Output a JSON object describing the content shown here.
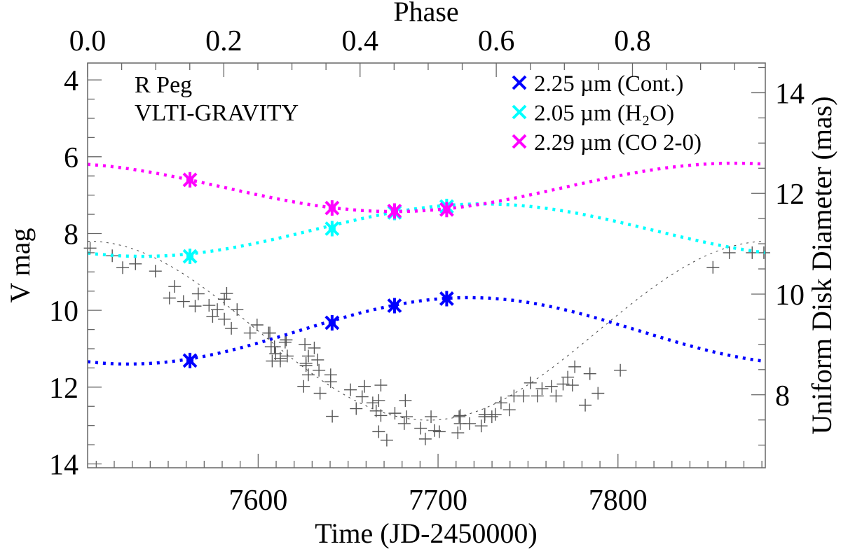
{
  "chart_data": {
    "type": "scatter",
    "annotations": [
      "R Peg",
      "VLTI-GRAVITY"
    ],
    "x_axis": {
      "label": "Time (JD-2450000)",
      "range": [
        7505.2,
        7881.9
      ],
      "ticks": [
        7600,
        7700,
        7800
      ],
      "minor_step": 10
    },
    "phase_axis": {
      "label": "Phase",
      "range": [
        0.0,
        0.995
      ],
      "ticks": [
        "0.0",
        "0.2",
        "0.4",
        "0.6",
        "0.8"
      ],
      "minor_step": 0.05
    },
    "y_left": {
      "label": "V mag",
      "range": [
        14.1,
        3.56
      ],
      "inverted": true,
      "ticks": [
        4,
        6,
        8,
        10,
        12,
        14
      ],
      "minor_step": 0.5
    },
    "y_right": {
      "label": "Uniform Disk Diameter (mas)",
      "range": [
        6.55,
        14.59
      ],
      "ticks": [
        8,
        10,
        12,
        14
      ],
      "minor_step": 0.5
    },
    "grid": false,
    "legend": {
      "placement": "top-right",
      "entries": [
        {
          "label": "2.25 µm (Cont.)",
          "color": "#0000ff"
        },
        {
          "label": "2.05 µm (H₂O)",
          "color": "#00ffff"
        },
        {
          "label": "2.29 µm (CO 2-0)",
          "color": "#ff00ff"
        }
      ]
    },
    "series": [
      {
        "name": "2.25 µm (Cont.)",
        "color": "#0000ff",
        "axis": "right",
        "points": [
          [
            7562.1,
            8.68
          ],
          [
            7641.1,
            9.43
          ],
          [
            7675.8,
            9.77
          ],
          [
            7704.8,
            9.91
          ]
        ],
        "fit": {
          "style": "dotted",
          "mean": 9.27,
          "amplitude": 0.66,
          "phase_of_max": 0.56
        }
      },
      {
        "name": "2.05 µm (H₂O)",
        "color": "#00ffff",
        "axis": "right",
        "points": [
          [
            7562.1,
            10.75
          ],
          [
            7641.1,
            11.3
          ],
          [
            7675.8,
            11.62
          ],
          [
            7704.8,
            11.74
          ]
        ],
        "fit": {
          "style": "dotted",
          "mean": 11.27,
          "amplitude": 0.52,
          "phase_of_max": 0.58
        }
      },
      {
        "name": "2.29 µm (CO 2-0)",
        "color": "#ff00ff",
        "axis": "right",
        "points": [
          [
            7562.1,
            12.27
          ],
          [
            7641.1,
            11.71
          ],
          [
            7675.8,
            11.65
          ],
          [
            7704.8,
            11.68
          ]
        ],
        "fit": {
          "style": "dotted",
          "mean": 12.12,
          "amplitude": 0.48,
          "phase_of_max": 0.95
        }
      }
    ],
    "v_mag": {
      "color": "#555555",
      "axis": "left",
      "fit": {
        "style": "dashed",
        "mean": 10.53,
        "amplitude": 2.33,
        "phase_of_max": 0.5
      },
      "points": [
        [
          7506.6,
          8.38
        ],
        [
          7518.9,
          8.58
        ],
        [
          7524.7,
          8.89
        ],
        [
          7531.8,
          8.79
        ],
        [
          7542.9,
          8.98
        ],
        [
          7553.6,
          9.38
        ],
        [
          7550.7,
          9.68
        ],
        [
          7558.5,
          9.77
        ],
        [
          7566.7,
          9.57
        ],
        [
          7565.0,
          9.89
        ],
        [
          7572.7,
          9.87
        ],
        [
          7577.3,
          9.98
        ],
        [
          7582.5,
          9.56
        ],
        [
          7581.2,
          9.71
        ],
        [
          7588.3,
          9.98
        ],
        [
          7574.7,
          10.16
        ],
        [
          7581.2,
          10.23
        ],
        [
          7585.1,
          10.47
        ],
        [
          7599.4,
          10.38
        ],
        [
          7595.5,
          10.59
        ],
        [
          7605.8,
          10.59
        ],
        [
          7615.0,
          10.83
        ],
        [
          7607.2,
          10.95
        ],
        [
          7609.7,
          11.13
        ],
        [
          7612.3,
          11.32
        ],
        [
          7626.0,
          10.89
        ],
        [
          7627.9,
          11.19
        ],
        [
          7626.6,
          11.44
        ],
        [
          7606.5,
          10.59
        ],
        [
          7609.1,
          10.95
        ],
        [
          7607.8,
          11.32
        ],
        [
          7612.3,
          11.25
        ],
        [
          7615.6,
          10.77
        ],
        [
          7616.2,
          11.19
        ],
        [
          7631.2,
          10.98
        ],
        [
          7626.6,
          11.38
        ],
        [
          7627.9,
          11.68
        ],
        [
          7633.1,
          11.29
        ],
        [
          7633.8,
          11.56
        ],
        [
          7640.3,
          11.68
        ],
        [
          7640.3,
          11.86
        ],
        [
          7625.3,
          11.98
        ],
        [
          7634.4,
          12.16
        ],
        [
          7641.2,
          12.76
        ],
        [
          7651.3,
          12.07
        ],
        [
          7659.1,
          11.98
        ],
        [
          7668.2,
          11.95
        ],
        [
          7657.8,
          12.25
        ],
        [
          7663.7,
          12.41
        ],
        [
          7667.0,
          12.35
        ],
        [
          7654.5,
          12.56
        ],
        [
          7665.6,
          12.62
        ],
        [
          7668.2,
          12.74
        ],
        [
          7676.0,
          12.68
        ],
        [
          7681.8,
          12.35
        ],
        [
          7682.5,
          12.77
        ],
        [
          7681.2,
          12.95
        ],
        [
          7667.0,
          13.16
        ],
        [
          7671.5,
          13.38
        ],
        [
          7690.3,
          13.07
        ],
        [
          7692.9,
          13.35
        ],
        [
          7696.1,
          12.77
        ],
        [
          7698.0,
          13.13
        ],
        [
          7700.7,
          13.16
        ],
        [
          7711.7,
          12.77
        ],
        [
          7711.0,
          13.19
        ],
        [
          7712.3,
          12.95
        ],
        [
          7717.5,
          12.95
        ],
        [
          7724.0,
          13.01
        ],
        [
          7725.9,
          12.77
        ],
        [
          7729.9,
          12.77
        ],
        [
          7712.3,
          12.74
        ],
        [
          7726.0,
          12.71
        ],
        [
          7731.8,
          12.71
        ],
        [
          7739.6,
          12.59
        ],
        [
          7735.0,
          12.41
        ],
        [
          7742.2,
          12.23
        ],
        [
          7747.4,
          12.23
        ],
        [
          7751.3,
          11.89
        ],
        [
          7755.2,
          12.23
        ],
        [
          7757.8,
          12.04
        ],
        [
          7763.0,
          11.98
        ],
        [
          7765.6,
          12.23
        ],
        [
          7769.5,
          11.92
        ],
        [
          7772.1,
          11.74
        ],
        [
          7776.0,
          11.47
        ],
        [
          7774.7,
          11.95
        ],
        [
          7784.4,
          11.65
        ],
        [
          7788.9,
          12.16
        ],
        [
          7781.8,
          12.47
        ],
        [
          7801.3,
          11.56
        ],
        [
          7852.8,
          8.88
        ],
        [
          7861.9,
          8.5
        ],
        [
          7874.6,
          8.5
        ],
        [
          7881.1,
          8.5
        ]
      ]
    }
  }
}
